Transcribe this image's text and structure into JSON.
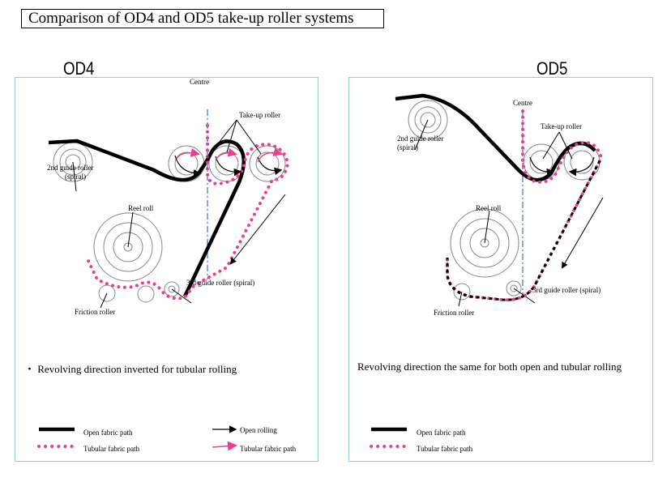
{
  "title": "Comparison of OD4 and OD5 take-up roller systems",
  "colors": {
    "open_path": "#000000",
    "tubular_path": "#e8408e",
    "centre_line": "#3a6fd8",
    "panel_border": "#9cc7d6"
  },
  "od4": {
    "label": "OD4",
    "centre": "Centre",
    "take_up_roller": "Take-up roller",
    "guide2": "2nd guide roller",
    "guide2_sub": "(spiral)",
    "reel_roll": "Reel roll",
    "guide3": "3rd guide roller (spiral)",
    "friction_roller": "Friction roller",
    "note": "・ Revolving direction inverted for tubular rolling",
    "legend": {
      "open_fabric": "Open fabric path",
      "tubular_fabric": "Tubular fabric path",
      "open_rolling": "Open rolling",
      "tubular_rolling": "Tubular fabric path"
    }
  },
  "od5": {
    "label": "OD5",
    "centre": "Centre",
    "take_up_roller": "Take-up roller",
    "guide2": "2nd guide roller",
    "guide2_sub": "(spiral)",
    "reel_roll": "Reel roll",
    "guide3": "3rd guide roller (spiral)",
    "friction_roller": "Friction roller",
    "note": "Revolving direction the same for both open and tubular rolling",
    "legend": {
      "open_fabric": "Open fabric path",
      "tubular_fabric": "Tubular fabric path"
    }
  }
}
